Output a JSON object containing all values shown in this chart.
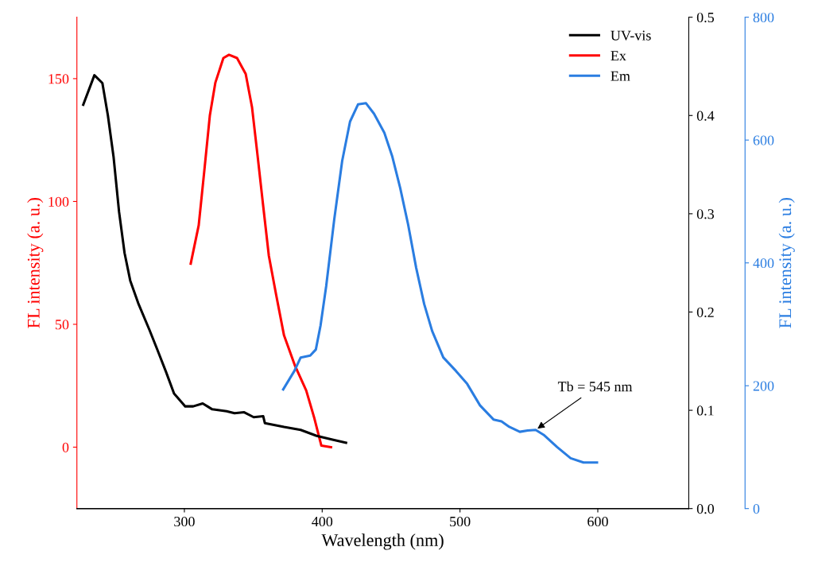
{
  "chart_data": {
    "type": "line",
    "xlabel": "Wavelength (nm)",
    "ylabel": "FL intensity (a. u.)",
    "y3label": "FL intensity (a. u.)",
    "xlim": [
      222,
      666
    ],
    "xticks": [
      300,
      400,
      500,
      600
    ],
    "ylim": [
      -25,
      175
    ],
    "yticks": [
      0,
      50,
      100,
      150
    ],
    "y2lim": [
      0.0,
      0.5
    ],
    "y2ticks": [
      {
        "value": 0.0,
        "label": "0.0"
      },
      0.1,
      0.2,
      0.3,
      0.4,
      0.5
    ],
    "y3lim": [
      0,
      800
    ],
    "y3ticks": [
      0,
      200,
      400,
      600,
      800
    ],
    "legend": "top right",
    "grid": false,
    "line_style": "solid",
    "series": [
      {
        "name": "UV-vis",
        "color": "#000000",
        "axis": "y2",
        "x": [
          226.6,
          234.7,
          240.5,
          244.5,
          248.6,
          252.6,
          256.6,
          260.7,
          266.5,
          274.6,
          280.3,
          286.7,
          292.5,
          300.6,
          306.4,
          313.3,
          320.2,
          330.6,
          336.4,
          343.4,
          350.3,
          357.2,
          358.4,
          372.3,
          384.4,
          396.0,
          408.1,
          417.3
        ],
        "values": [
          0.411,
          0.441,
          0.433,
          0.4,
          0.358,
          0.302,
          0.26,
          0.232,
          0.209,
          0.182,
          0.162,
          0.139,
          0.117,
          0.104,
          0.104,
          0.107,
          0.101,
          0.099,
          0.097,
          0.098,
          0.093,
          0.094,
          0.087,
          0.083,
          0.08,
          0.074,
          0.07,
          0.067
        ]
      },
      {
        "name": "Ex",
        "color": "#ff0000",
        "x": [
          304.6,
          310.4,
          314.5,
          318.5,
          322.5,
          328.3,
          332.4,
          338.2,
          344.5,
          349.1,
          353.2,
          357.2,
          361.3,
          366.5,
          372.3,
          380.3,
          388.4,
          394.2,
          399.4,
          406.4
        ],
        "values": [
          74.7,
          90.3,
          112.7,
          135.1,
          148.4,
          158.4,
          159.7,
          158.4,
          151.9,
          138.3,
          118.2,
          98.1,
          77.9,
          62.3,
          45.5,
          33.1,
          23.1,
          12.0,
          0.6,
          0
        ]
      },
      {
        "name": "Em",
        "color": "#2a7de1",
        "axis": "y3",
        "x": [
          371.7,
          379.8,
          384.4,
          391.3,
          395.4,
          398.8,
          402.9,
          408.7,
          414.5,
          420.2,
          426.0,
          431.8,
          437.6,
          445.1,
          450.9,
          456.6,
          462.4,
          468.2,
          474.0,
          479.8,
          487.9,
          497.1,
          505.2,
          514.5,
          524.3,
          530.1,
          535.8,
          543.4,
          549.1,
          554.9,
          560.7,
          570.5,
          580.3,
          589.6,
          599.4
        ],
        "values": [
          194,
          224,
          246,
          249,
          259,
          298,
          362,
          470,
          566,
          630,
          658,
          660,
          643,
          612,
          573,
          522,
          462,
          392,
          333,
          289,
          246,
          224,
          203,
          168,
          145,
          142,
          133,
          125,
          127,
          128,
          120,
          100,
          82,
          75,
          75
        ]
      }
    ],
    "annotations": [
      {
        "text": "Tb = 545 nm",
        "x": 554.9,
        "y": 7
      }
    ]
  }
}
